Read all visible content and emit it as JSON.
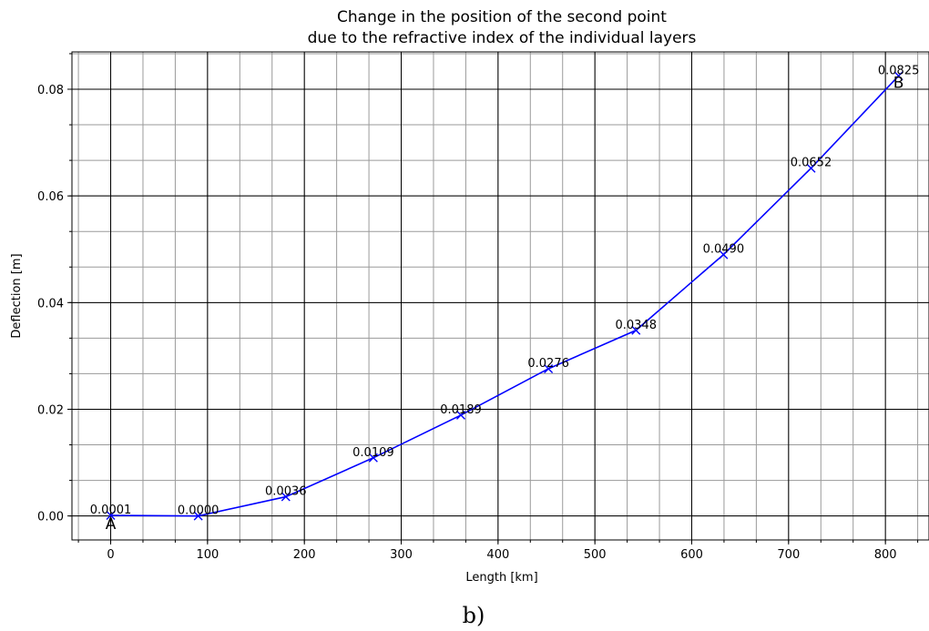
{
  "chart_data": {
    "type": "line",
    "title": [
      "Change in the position of the second point",
      "due to the refractive index of the individual layers"
    ],
    "xlabel": "Length [km]",
    "ylabel": "Deflection [m]",
    "xlim": [
      -40,
      845
    ],
    "ylim": [
      -0.0045,
      0.087
    ],
    "x_ticks": [
      0,
      100,
      200,
      300,
      400,
      500,
      600,
      700,
      800
    ],
    "x_tick_labels": [
      "0",
      "100",
      "200",
      "300",
      "400",
      "500",
      "600",
      "700",
      "800"
    ],
    "y_ticks": [
      0.0,
      0.02,
      0.04,
      0.06,
      0.08
    ],
    "y_tick_labels": [
      "0.00",
      "0.02",
      "0.04",
      "0.06",
      "0.08"
    ],
    "x_minor_step": 33.33333,
    "y_minor_step": 0.006666667,
    "grid": true,
    "series": [
      {
        "color": "#0000ff",
        "marker": "x",
        "x": [
          0,
          90.4,
          180.8,
          271.2,
          361.6,
          452,
          542.4,
          632.8,
          723.2,
          813.6
        ],
        "values": [
          0.0001,
          0.0,
          0.0036,
          0.0109,
          0.0189,
          0.0276,
          0.0348,
          0.049,
          0.0652,
          0.0825
        ],
        "labels": [
          "0.0001",
          "0.0000",
          "0.0036",
          "0.0109",
          "0.0189",
          "0.0276",
          "0.0348",
          "0.0490",
          "0.0652",
          "0.0825"
        ]
      }
    ],
    "annotations": [
      {
        "text": "A",
        "x": 0,
        "y": 0.0001
      },
      {
        "text": "B",
        "x": 813.6,
        "y": 0.0825
      }
    ]
  },
  "caption": "b)"
}
